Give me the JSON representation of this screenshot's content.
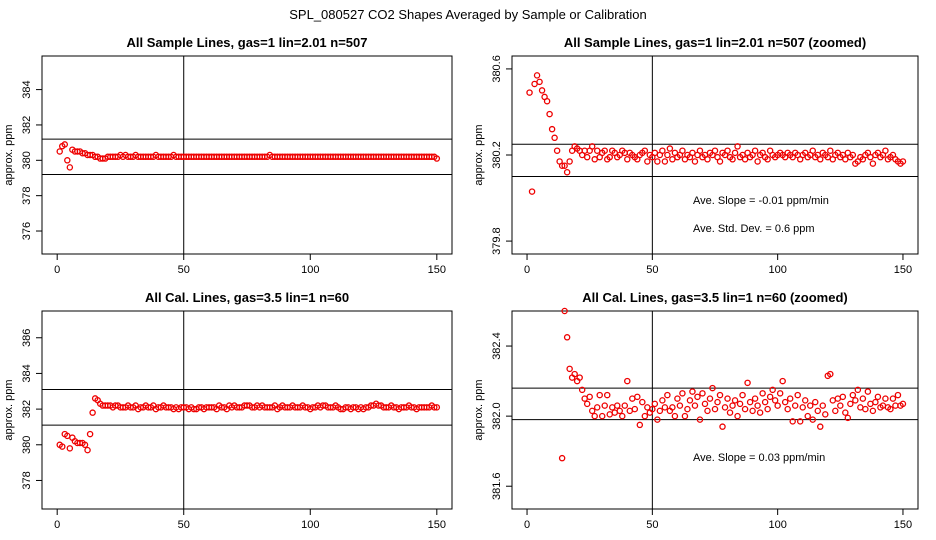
{
  "figure": {
    "title": "SPL_080527  CO2 Shapes Averaged by Sample or Calibration"
  },
  "colors": {
    "points": "#ee0000",
    "lines": "#000000",
    "frame": "#000000"
  },
  "chart_data": [
    {
      "type": "scatter",
      "title": "All Sample Lines, gas=1 lin=2.01 n=507",
      "xlabel": "",
      "ylabel": "approx. ppm",
      "xlim": [
        -6,
        156
      ],
      "ylim": [
        374.7,
        385.9
      ],
      "xticks": [
        0,
        50,
        100,
        150
      ],
      "xtick_labels": [
        "0",
        "50",
        "100",
        "150"
      ],
      "yticks": [
        376,
        378,
        380,
        382,
        384
      ],
      "ytick_labels": [
        "376",
        "378",
        "380",
        "382",
        "384"
      ],
      "hlines": [
        381.2,
        379.2
      ],
      "vlines": [
        50
      ],
      "annotations": [],
      "x": [
        1,
        2,
        3,
        4,
        5,
        6,
        7,
        8,
        9,
        10,
        11,
        12,
        13,
        14,
        15,
        16,
        17,
        18,
        19,
        20,
        21,
        22,
        23,
        24,
        25,
        26,
        27,
        28,
        29,
        30,
        31,
        32,
        33,
        34,
        35,
        36,
        37,
        38,
        39,
        40,
        41,
        42,
        43,
        44,
        45,
        46,
        47,
        48,
        49,
        50,
        51,
        52,
        53,
        54,
        55,
        56,
        57,
        58,
        59,
        60,
        61,
        62,
        63,
        64,
        65,
        66,
        67,
        68,
        69,
        70,
        71,
        72,
        73,
        74,
        75,
        76,
        77,
        78,
        79,
        80,
        81,
        82,
        83,
        84,
        85,
        86,
        87,
        88,
        89,
        90,
        91,
        92,
        93,
        94,
        95,
        96,
        97,
        98,
        99,
        100,
        101,
        102,
        103,
        104,
        105,
        106,
        107,
        108,
        109,
        110,
        111,
        112,
        113,
        114,
        115,
        116,
        117,
        118,
        119,
        120,
        121,
        122,
        123,
        124,
        125,
        126,
        127,
        128,
        129,
        130,
        131,
        132,
        133,
        134,
        135,
        136,
        137,
        138,
        139,
        140,
        141,
        142,
        143,
        144,
        145,
        146,
        147,
        148,
        149,
        150
      ],
      "y": [
        380.5,
        380.8,
        380.9,
        380.0,
        379.6,
        380.6,
        380.5,
        380.5,
        380.5,
        380.4,
        380.4,
        380.3,
        380.3,
        380.3,
        380.2,
        380.2,
        380.1,
        380.1,
        380.1,
        380.2,
        380.2,
        380.2,
        380.2,
        380.2,
        380.3,
        380.2,
        380.3,
        380.2,
        380.2,
        380.2,
        380.3,
        380.2,
        380.2,
        380.2,
        380.2,
        380.2,
        380.2,
        380.2,
        380.3,
        380.2,
        380.2,
        380.2,
        380.2,
        380.2,
        380.2,
        380.3,
        380.2,
        380.2,
        380.2,
        380.2,
        380.2,
        380.2,
        380.2,
        380.2,
        380.2,
        380.2,
        380.2,
        380.2,
        380.2,
        380.2,
        380.2,
        380.2,
        380.2,
        380.2,
        380.2,
        380.2,
        380.2,
        380.2,
        380.2,
        380.2,
        380.2,
        380.2,
        380.2,
        380.2,
        380.2,
        380.2,
        380.2,
        380.2,
        380.2,
        380.2,
        380.2,
        380.2,
        380.2,
        380.3,
        380.2,
        380.2,
        380.2,
        380.2,
        380.2,
        380.2,
        380.2,
        380.2,
        380.2,
        380.2,
        380.2,
        380.2,
        380.2,
        380.2,
        380.2,
        380.2,
        380.2,
        380.2,
        380.2,
        380.2,
        380.2,
        380.2,
        380.2,
        380.2,
        380.2,
        380.2,
        380.2,
        380.2,
        380.2,
        380.2,
        380.2,
        380.2,
        380.2,
        380.2,
        380.2,
        380.2,
        380.2,
        380.2,
        380.2,
        380.2,
        380.2,
        380.2,
        380.2,
        380.2,
        380.2,
        380.2,
        380.2,
        380.2,
        380.2,
        380.2,
        380.2,
        380.2,
        380.2,
        380.2,
        380.2,
        380.2,
        380.2,
        380.2,
        380.2,
        380.2,
        380.2,
        380.2,
        380.2,
        380.2,
        380.2,
        380.1
      ]
    },
    {
      "type": "scatter",
      "title": "All Sample Lines, gas=1 lin=2.01 n=507 (zoomed)",
      "xlabel": "",
      "ylabel": "approx. ppm",
      "xlim": [
        -6,
        156
      ],
      "ylim": [
        379.74,
        380.66
      ],
      "xticks": [
        0,
        50,
        100,
        150
      ],
      "xtick_labels": [
        "0",
        "50",
        "100",
        "150"
      ],
      "yticks": [
        379.8,
        380.2,
        380.6
      ],
      "ytick_labels": [
        "379.8",
        "380.2",
        "380.6"
      ],
      "hlines": [
        380.25,
        380.1
      ],
      "vlines": [
        50
      ],
      "annotations": [
        "Ave. Slope = -0.01  ppm/min",
        "Ave. Std. Dev. = 0.6  ppm"
      ],
      "x": [
        1,
        2,
        3,
        4,
        5,
        6,
        7,
        8,
        9,
        10,
        11,
        12,
        13,
        14,
        15,
        16,
        17,
        18,
        19,
        20,
        21,
        22,
        23,
        24,
        25,
        26,
        27,
        28,
        29,
        30,
        31,
        32,
        33,
        34,
        35,
        36,
        37,
        38,
        39,
        40,
        41,
        42,
        43,
        44,
        45,
        46,
        47,
        48,
        49,
        50,
        51,
        52,
        53,
        54,
        55,
        56,
        57,
        58,
        59,
        60,
        61,
        62,
        63,
        64,
        65,
        66,
        67,
        68,
        69,
        70,
        71,
        72,
        73,
        74,
        75,
        76,
        77,
        78,
        79,
        80,
        81,
        82,
        83,
        84,
        85,
        86,
        87,
        88,
        89,
        90,
        91,
        92,
        93,
        94,
        95,
        96,
        97,
        98,
        99,
        100,
        101,
        102,
        103,
        104,
        105,
        106,
        107,
        108,
        109,
        110,
        111,
        112,
        113,
        114,
        115,
        116,
        117,
        118,
        119,
        120,
        121,
        122,
        123,
        124,
        125,
        126,
        127,
        128,
        129,
        130,
        131,
        132,
        133,
        134,
        135,
        136,
        137,
        138,
        139,
        140,
        141,
        142,
        143,
        144,
        145,
        146,
        147,
        148,
        149,
        150
      ],
      "y": [
        380.49,
        380.03,
        380.53,
        380.57,
        380.54,
        380.5,
        380.47,
        380.45,
        380.39,
        380.32,
        380.28,
        380.22,
        380.17,
        380.15,
        380.15,
        380.12,
        380.17,
        380.22,
        380.24,
        380.23,
        380.22,
        380.2,
        380.22,
        380.19,
        380.22,
        380.24,
        380.18,
        380.22,
        380.19,
        380.21,
        380.22,
        380.18,
        380.19,
        380.22,
        380.21,
        380.19,
        380.2,
        380.22,
        380.21,
        380.18,
        380.21,
        380.2,
        380.19,
        380.18,
        380.2,
        380.21,
        380.22,
        380.17,
        380.2,
        380.19,
        380.21,
        380.17,
        380.2,
        380.22,
        380.17,
        380.2,
        380.23,
        380.18,
        380.21,
        380.19,
        380.2,
        380.22,
        380.18,
        380.2,
        380.19,
        380.21,
        380.17,
        380.2,
        380.22,
        380.19,
        380.2,
        380.18,
        380.21,
        380.2,
        380.22,
        380.19,
        380.17,
        380.21,
        380.2,
        380.22,
        380.19,
        380.18,
        380.21,
        380.24,
        380.19,
        380.2,
        380.18,
        380.21,
        380.19,
        380.2,
        380.22,
        380.17,
        380.2,
        380.21,
        380.19,
        380.18,
        380.22,
        380.2,
        380.19,
        380.2,
        380.21,
        380.2,
        380.19,
        380.21,
        380.2,
        380.19,
        380.21,
        380.2,
        380.18,
        380.2,
        380.21,
        380.19,
        380.2,
        380.22,
        380.19,
        380.2,
        380.18,
        380.21,
        380.2,
        380.19,
        380.22,
        380.18,
        380.2,
        380.21,
        380.19,
        380.2,
        380.18,
        380.21,
        380.19,
        380.2,
        380.16,
        380.17,
        380.19,
        380.18,
        380.2,
        380.21,
        380.19,
        380.16,
        380.2,
        380.21,
        380.19,
        380.2,
        380.22,
        380.18,
        380.19,
        380.2,
        380.18,
        380.17,
        380.16,
        380.17
      ]
    },
    {
      "type": "scatter",
      "title": "All Cal. Lines, gas=3.5 lin=1 n=60",
      "xlabel": "",
      "ylabel": "approx. ppm",
      "xlim": [
        -6,
        156
      ],
      "ylim": [
        376.4,
        387.5
      ],
      "xticks": [
        0,
        50,
        100,
        150
      ],
      "xtick_labels": [
        "0",
        "50",
        "100",
        "150"
      ],
      "yticks": [
        378,
        380,
        382,
        384,
        386
      ],
      "ytick_labels": [
        "378",
        "380",
        "382",
        "384",
        "386"
      ],
      "hlines": [
        383.1,
        381.1
      ],
      "vlines": [
        50
      ],
      "annotations": [],
      "x": [
        1,
        2,
        3,
        4,
        5,
        6,
        7,
        8,
        9,
        10,
        11,
        12,
        13,
        14,
        15,
        16,
        17,
        18,
        19,
        20,
        21,
        22,
        23,
        24,
        25,
        26,
        27,
        28,
        29,
        30,
        31,
        32,
        33,
        34,
        35,
        36,
        37,
        38,
        39,
        40,
        41,
        42,
        43,
        44,
        45,
        46,
        47,
        48,
        49,
        50,
        51,
        52,
        53,
        54,
        55,
        56,
        57,
        58,
        59,
        60,
        61,
        62,
        63,
        64,
        65,
        66,
        67,
        68,
        69,
        70,
        71,
        72,
        73,
        74,
        75,
        76,
        77,
        78,
        79,
        80,
        81,
        82,
        83,
        84,
        85,
        86,
        87,
        88,
        89,
        90,
        91,
        92,
        93,
        94,
        95,
        96,
        97,
        98,
        99,
        100,
        101,
        102,
        103,
        104,
        105,
        106,
        107,
        108,
        109,
        110,
        111,
        112,
        113,
        114,
        115,
        116,
        117,
        118,
        119,
        120,
        121,
        122,
        123,
        124,
        125,
        126,
        127,
        128,
        129,
        130,
        131,
        132,
        133,
        134,
        135,
        136,
        137,
        138,
        139,
        140,
        141,
        142,
        143,
        144,
        145,
        146,
        147,
        148,
        149,
        150
      ],
      "y": [
        380.0,
        379.9,
        380.6,
        380.5,
        379.8,
        380.4,
        380.2,
        380.1,
        380.1,
        380.1,
        380.0,
        379.7,
        380.6,
        381.8,
        382.6,
        382.5,
        382.3,
        382.2,
        382.2,
        382.2,
        382.2,
        382.1,
        382.2,
        382.2,
        382.1,
        382.1,
        382.1,
        382.2,
        382.1,
        382.1,
        382.2,
        382.0,
        382.1,
        382.1,
        382.2,
        382.1,
        382.1,
        382.2,
        382.0,
        382.1,
        382.1,
        382.2,
        382.1,
        382.1,
        382.1,
        382.0,
        382.1,
        382.0,
        382.1,
        382.1,
        382.1,
        382.0,
        382.1,
        382.0,
        382.0,
        382.1,
        382.1,
        382.0,
        382.1,
        382.1,
        382.1,
        382.1,
        382.0,
        382.2,
        382.1,
        382.1,
        382.0,
        382.2,
        382.1,
        382.2,
        382.1,
        382.1,
        382.1,
        382.2,
        382.2,
        382.2,
        382.1,
        382.1,
        382.2,
        382.1,
        382.2,
        382.1,
        382.1,
        382.1,
        382.1,
        382.2,
        382.0,
        382.1,
        382.2,
        382.1,
        382.1,
        382.1,
        382.2,
        382.1,
        382.1,
        382.1,
        382.2,
        382.1,
        382.1,
        382.0,
        382.1,
        382.1,
        382.2,
        382.1,
        382.2,
        382.2,
        382.1,
        382.1,
        382.1,
        382.2,
        382.1,
        382.0,
        382.0,
        382.1,
        382.1,
        382.0,
        382.1,
        382.1,
        382.0,
        382.1,
        382.0,
        382.1,
        382.1,
        382.2,
        382.2,
        382.3,
        382.2,
        382.2,
        382.1,
        382.1,
        382.1,
        382.2,
        382.1,
        382.1,
        382.0,
        382.1,
        382.1,
        382.1,
        382.2,
        382.1,
        382.1,
        382.0,
        382.1,
        382.1,
        382.1,
        382.1,
        382.1,
        382.2,
        382.1,
        382.1
      ]
    },
    {
      "type": "scatter",
      "title": "All Cal. Lines, gas=3.5 lin=1 n=60 (zoomed)",
      "xlabel": "",
      "ylabel": "approx. ppm",
      "xlim": [
        -6,
        156
      ],
      "ylim": [
        381.47,
        382.6
      ],
      "xticks": [
        0,
        50,
        100,
        150
      ],
      "xtick_labels": [
        "0",
        "50",
        "100",
        "150"
      ],
      "yticks": [
        381.6,
        382.0,
        382.4
      ],
      "ytick_labels": [
        "381.6",
        "382.0",
        "382.4"
      ],
      "hlines": [
        382.16,
        381.98
      ],
      "vlines": [
        50
      ],
      "annotations": [
        "Ave. Slope = 0.03  ppm/min"
      ],
      "x": [
        14,
        15,
        16,
        17,
        18,
        19,
        20,
        21,
        22,
        23,
        24,
        25,
        26,
        27,
        28,
        29,
        30,
        31,
        32,
        33,
        34,
        35,
        36,
        37,
        38,
        39,
        40,
        41,
        42,
        43,
        44,
        45,
        46,
        47,
        48,
        49,
        50,
        51,
        52,
        53,
        54,
        55,
        56,
        57,
        58,
        59,
        60,
        61,
        62,
        63,
        64,
        65,
        66,
        67,
        68,
        69,
        70,
        71,
        72,
        73,
        74,
        75,
        76,
        77,
        78,
        79,
        80,
        81,
        82,
        83,
        84,
        85,
        86,
        87,
        88,
        89,
        90,
        91,
        92,
        93,
        94,
        95,
        96,
        97,
        98,
        99,
        100,
        101,
        102,
        103,
        104,
        105,
        106,
        107,
        108,
        109,
        110,
        111,
        112,
        113,
        114,
        115,
        116,
        117,
        118,
        119,
        120,
        121,
        122,
        123,
        124,
        125,
        126,
        127,
        128,
        129,
        130,
        131,
        132,
        133,
        134,
        135,
        136,
        137,
        138,
        139,
        140,
        141,
        142,
        143,
        144,
        145,
        146,
        147,
        148,
        149,
        150
      ],
      "y": [
        381.76,
        382.6,
        382.45,
        382.27,
        382.22,
        382.24,
        382.2,
        382.22,
        382.15,
        382.1,
        382.07,
        382.11,
        382.03,
        382.0,
        382.05,
        382.12,
        382.0,
        382.06,
        382.12,
        382.01,
        382.05,
        382.02,
        382.06,
        382.03,
        382.0,
        382.06,
        382.2,
        382.03,
        382.1,
        382.04,
        382.11,
        381.95,
        382.08,
        382.0,
        382.05,
        382.02,
        382.04,
        382.07,
        381.98,
        382.03,
        382.09,
        382.05,
        382.12,
        382.03,
        382.05,
        382.0,
        382.1,
        382.06,
        382.13,
        382.0,
        382.04,
        382.09,
        382.14,
        382.06,
        382.11,
        381.98,
        382.13,
        382.07,
        382.03,
        382.1,
        382.16,
        382.04,
        382.08,
        382.12,
        381.94,
        382.05,
        382.1,
        382.02,
        382.06,
        382.09,
        382.0,
        382.07,
        382.12,
        382.04,
        382.19,
        382.08,
        382.03,
        382.1,
        382.06,
        382.02,
        382.13,
        382.08,
        382.04,
        382.11,
        382.15,
        382.09,
        382.06,
        382.13,
        382.2,
        382.08,
        382.04,
        382.1,
        381.97,
        382.06,
        382.12,
        381.97,
        382.05,
        382.09,
        382.0,
        382.06,
        381.98,
        382.08,
        382.03,
        381.94,
        382.06,
        382.01,
        382.23,
        382.24,
        382.09,
        382.03,
        382.1,
        382.06,
        382.11,
        382.02,
        381.99,
        382.07,
        382.12,
        382.09,
        382.15,
        382.05,
        382.1,
        382.04,
        382.14,
        382.07,
        382.03,
        382.08,
        382.11,
        382.05,
        382.06,
        382.1,
        382.05,
        382.04,
        382.1,
        382.06,
        382.12,
        382.06,
        382.07
      ]
    }
  ]
}
